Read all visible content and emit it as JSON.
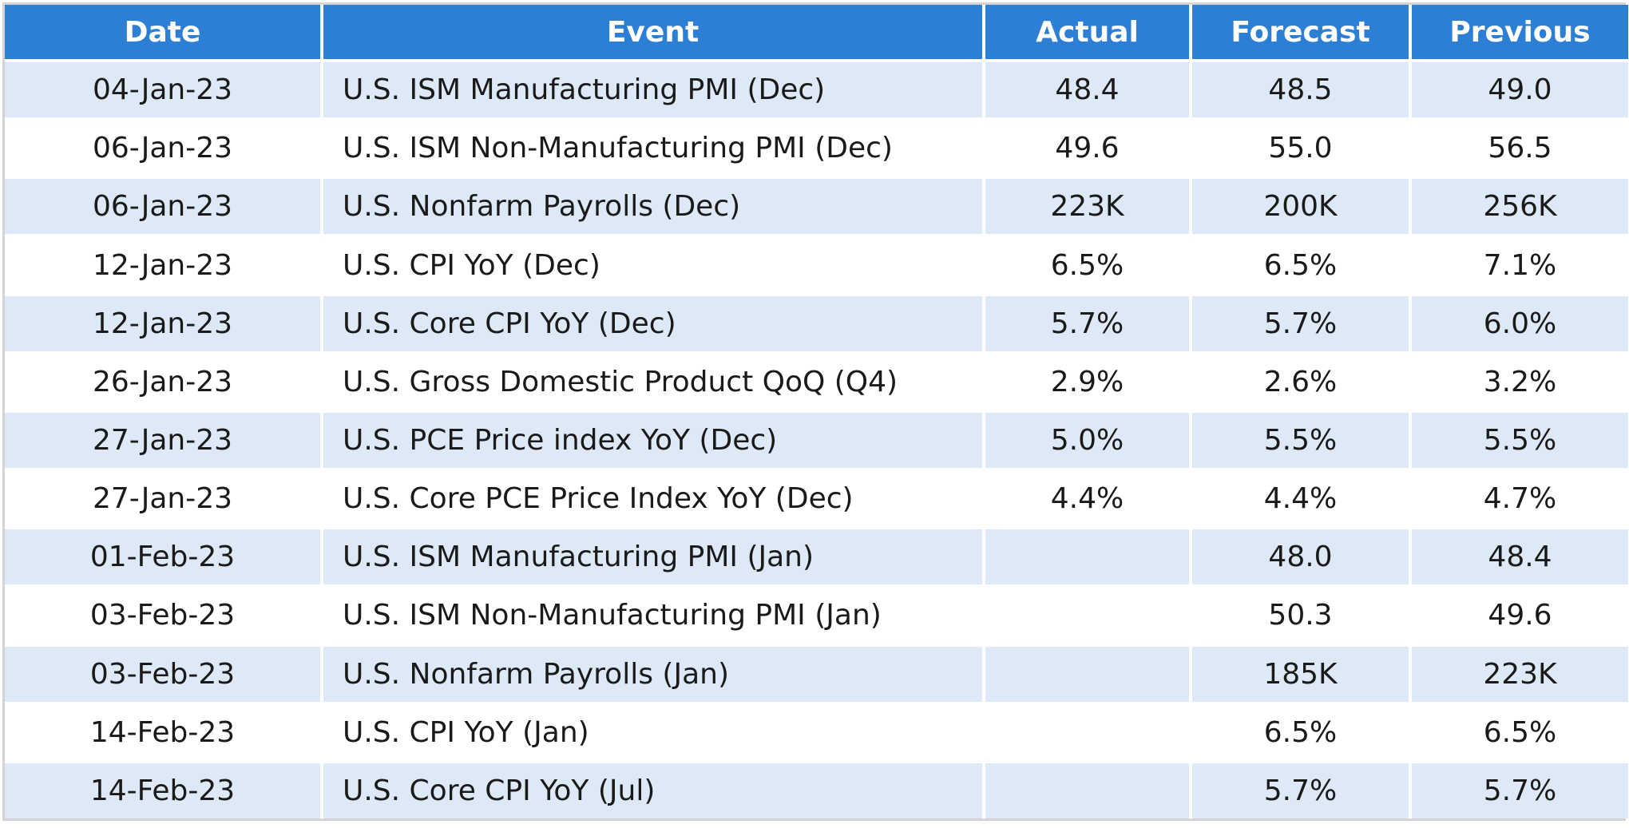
{
  "table": {
    "headers": {
      "date": "Date",
      "event": "Event",
      "actual": "Actual",
      "forecast": "Forecast",
      "previous": "Previous"
    },
    "rows": [
      {
        "date": "04-Jan-23",
        "event": "U.S. ISM Manufacturing PMI (Dec)",
        "actual": "48.4",
        "forecast": "48.5",
        "previous": "49.0"
      },
      {
        "date": "06-Jan-23",
        "event": "U.S. ISM Non-Manufacturing PMI (Dec)",
        "actual": "49.6",
        "forecast": "55.0",
        "previous": "56.5"
      },
      {
        "date": "06-Jan-23",
        "event": "U.S. Nonfarm Payrolls (Dec)",
        "actual": "223K",
        "forecast": "200K",
        "previous": "256K"
      },
      {
        "date": "12-Jan-23",
        "event": "U.S. CPI YoY (Dec)",
        "actual": "6.5%",
        "forecast": "6.5%",
        "previous": "7.1%"
      },
      {
        "date": "12-Jan-23",
        "event": "U.S. Core CPI YoY (Dec)",
        "actual": "5.7%",
        "forecast": "5.7%",
        "previous": "6.0%"
      },
      {
        "date": "26-Jan-23",
        "event": "U.S. Gross Domestic Product QoQ (Q4)",
        "actual": "2.9%",
        "forecast": "2.6%",
        "previous": "3.2%"
      },
      {
        "date": "27-Jan-23",
        "event": "U.S. PCE Price index YoY (Dec)",
        "actual": "5.0%",
        "forecast": "5.5%",
        "previous": "5.5%"
      },
      {
        "date": "27-Jan-23",
        "event": "U.S. Core PCE Price Index YoY (Dec)",
        "actual": "4.4%",
        "forecast": "4.4%",
        "previous": "4.7%"
      },
      {
        "date": "01-Feb-23",
        "event": "U.S. ISM Manufacturing PMI (Jan)",
        "actual": "",
        "forecast": "48.0",
        "previous": "48.4"
      },
      {
        "date": "03-Feb-23",
        "event": "U.S. ISM Non-Manufacturing PMI (Jan)",
        "actual": "",
        "forecast": "50.3",
        "previous": "49.6"
      },
      {
        "date": "03-Feb-23",
        "event": "U.S. Nonfarm Payrolls (Jan)",
        "actual": "",
        "forecast": "185K",
        "previous": "223K"
      },
      {
        "date": "14-Feb-23",
        "event": "U.S. CPI YoY (Jan)",
        "actual": "",
        "forecast": "6.5%",
        "previous": "6.5%"
      },
      {
        "date": "14-Feb-23",
        "event": "U.S. Core CPI YoY (Jul)",
        "actual": "",
        "forecast": "5.7%",
        "previous": "5.7%"
      }
    ]
  },
  "colors": {
    "header_bg": "#2d7fd6",
    "header_text": "#ffffff",
    "row_shaded": "#dde9f6",
    "row_plain": "#ffffff",
    "frame_border": "#d4d4d4"
  }
}
